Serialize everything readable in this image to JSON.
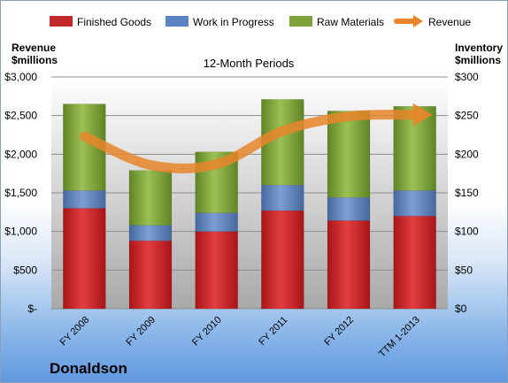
{
  "chart_data": {
    "type": "bar",
    "stacked": true,
    "title": "12-Month Periods",
    "categories": [
      "FY 2008",
      "FY 2009",
      "FY 2010",
      "FY 2011",
      "FY 2012",
      "TTM 1-2013"
    ],
    "left_axis": {
      "label_line1": "Revenue",
      "label_line2": "$millions",
      "ylim": [
        0,
        3000
      ],
      "ticks": [
        0,
        500,
        1000,
        1500,
        2000,
        2500,
        3000
      ],
      "tick_labels": [
        "$-",
        "$500",
        "$1,000",
        "$1,500",
        "$2,000",
        "$2,500",
        "$3,000"
      ]
    },
    "right_axis": {
      "label_line1": "Inventory",
      "label_line2": "$millions",
      "ylim": [
        0,
        300
      ],
      "ticks": [
        0,
        50,
        100,
        150,
        200,
        250,
        300
      ],
      "tick_labels": [
        "$0",
        "$50",
        "$100",
        "$150",
        "$200",
        "$250",
        "$300"
      ]
    },
    "series": [
      {
        "name": "Finished Goods",
        "axis": "right",
        "color": "#c0282a",
        "values": [
          130,
          88,
          100,
          127,
          114,
          120
        ]
      },
      {
        "name": "Work in Progress",
        "axis": "right",
        "color": "#5a82c0",
        "values": [
          23,
          20,
          24,
          33,
          30,
          33
        ]
      },
      {
        "name": "Raw Materials",
        "axis": "right",
        "color": "#7ea33a",
        "values": [
          112,
          71,
          79,
          111,
          112,
          109
        ]
      },
      {
        "name": "Revenue",
        "axis": "left",
        "type": "line",
        "color": "#e8852a",
        "values": [
          2230,
          1860,
          1870,
          2300,
          2490,
          2510
        ]
      }
    ],
    "legend_position": "top",
    "grid": true
  },
  "company": "Donaldson"
}
